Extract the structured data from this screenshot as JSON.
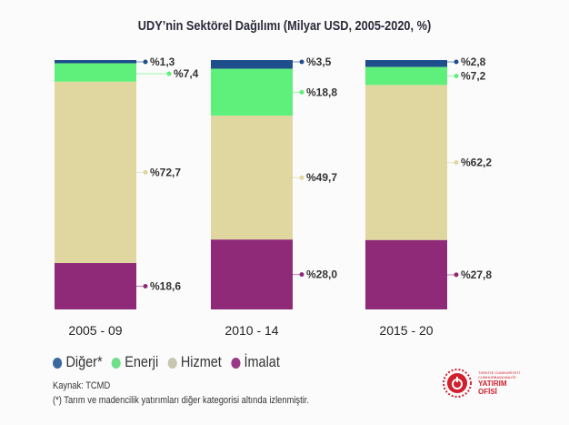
{
  "chart_data": {
    "type": "bar",
    "stacked": true,
    "title": "UDY’nin Sektörel Dağılımı (Milyar USD, 2005-2020, %)",
    "categories": [
      "2005 - 09",
      "2010 - 14",
      "2015 - 20"
    ],
    "series": [
      {
        "name": "Diğer*",
        "color": "#1f4e8c",
        "values": [
          1.3,
          3.5,
          2.8
        ],
        "labels": [
          "%1,3",
          "%3,5",
          "%2,8"
        ]
      },
      {
        "name": "Enerji",
        "color": "#5ef07a",
        "values": [
          7.4,
          18.8,
          7.2
        ],
        "labels": [
          "%7,4",
          "%18,8",
          "%7,2"
        ]
      },
      {
        "name": "Hizmet",
        "color": "#e0d6a0",
        "values": [
          72.7,
          49.7,
          62.2
        ],
        "labels": [
          "%72,7",
          "%49,7",
          "%62,2"
        ]
      },
      {
        "name": "İmalat",
        "color": "#8e2a78",
        "values": [
          18.6,
          28.0,
          27.8
        ],
        "labels": [
          "%18,6",
          "%28,0",
          "%27,8"
        ]
      }
    ],
    "ylim": [
      0,
      100
    ],
    "grid": false,
    "legend_placement": "bottom-left"
  },
  "legend_colors": [
    "#3a6a9c",
    "#6ee08a",
    "#c8c6b0",
    "#9a3a86"
  ],
  "source": "Kaynak: TCMD",
  "note": "(*) Tarım ve madencilik yatırımları diğer kategorisi altında izlenmiştir.",
  "logo": {
    "line1": "TÜRKİYE CUMHURİYETİ",
    "line2": "CUMHURBAŞKANLIĞI",
    "line3": "YATIRIM",
    "line4": "OFİSİ"
  }
}
